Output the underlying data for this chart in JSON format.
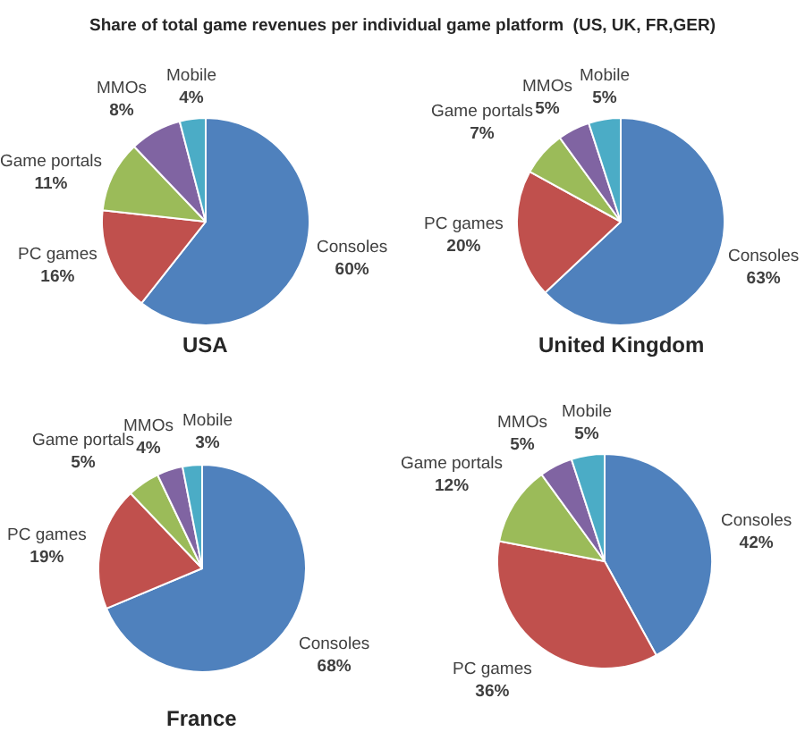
{
  "chart_data": [
    {
      "type": "pie",
      "title": "Share of total game revenues per individual game platform  (US, UK, FR,GER)",
      "xlabel": "USA",
      "categories": [
        "Consoles",
        "PC games",
        "Game portals",
        "MMOs",
        "Mobile"
      ],
      "values": [
        60,
        16,
        11,
        8,
        4
      ],
      "value_labels": [
        "60%",
        "16%",
        "11%",
        "8%",
        "4%"
      ],
      "colors": [
        "#4f81bd",
        "#c0504d",
        "#9bbb59",
        "#8064a2",
        "#4bacc6"
      ]
    },
    {
      "type": "pie",
      "xlabel": "United Kingdom",
      "categories": [
        "Consoles",
        "PC games",
        "Game portals",
        "MMOs",
        "Mobile"
      ],
      "values": [
        63,
        20,
        7,
        5,
        5
      ],
      "value_labels": [
        "63%",
        "20%",
        "7%",
        "5%",
        "5%"
      ],
      "colors": [
        "#4f81bd",
        "#c0504d",
        "#9bbb59",
        "#8064a2",
        "#4bacc6"
      ]
    },
    {
      "type": "pie",
      "xlabel": "France",
      "categories": [
        "Consoles",
        "PC games",
        "Game portals",
        "MMOs",
        "Mobile"
      ],
      "values": [
        68,
        19,
        5,
        4,
        3
      ],
      "value_labels": [
        "68%",
        "19%",
        "5%",
        "4%",
        "3%"
      ],
      "colors": [
        "#4f81bd",
        "#c0504d",
        "#9bbb59",
        "#8064a2",
        "#4bacc6"
      ]
    },
    {
      "type": "pie",
      "categories": [
        "Consoles",
        "PC games",
        "Game portals",
        "MMOs",
        "Mobile"
      ],
      "values": [
        42,
        36,
        12,
        5,
        5
      ],
      "value_labels": [
        "42%",
        "36%",
        "12%",
        "5%",
        "5%"
      ],
      "colors": [
        "#4f81bd",
        "#c0504d",
        "#9bbb59",
        "#8064a2",
        "#4bacc6"
      ]
    }
  ]
}
